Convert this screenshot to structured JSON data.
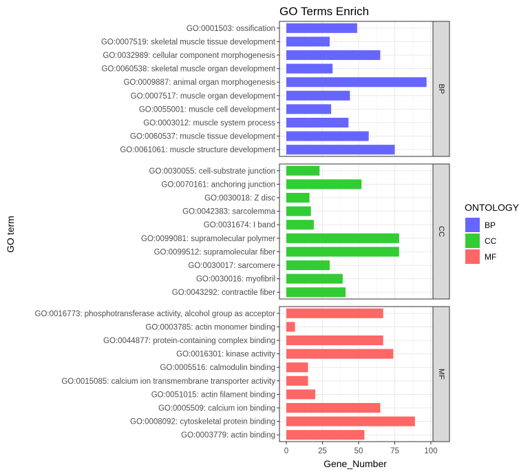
{
  "chart_data": {
    "type": "bar",
    "orientation": "horizontal",
    "title": "GO Terms Enrich",
    "xlabel": "Gene_Number",
    "ylabel": "GO term",
    "xlim": [
      0,
      100
    ],
    "xticks": [
      0,
      25,
      50,
      75,
      100
    ],
    "legend": {
      "title": "ONTOLOGY",
      "placement": "right",
      "items": [
        {
          "name": "BP",
          "color": "#6666FF"
        },
        {
          "name": "CC",
          "color": "#33CC33"
        },
        {
          "name": "MF",
          "color": "#FF6666"
        }
      ]
    },
    "facets": [
      {
        "name": "BP",
        "color": "#6666FF",
        "categories": [
          "GO:0001503: ossification",
          "GO:0007519: skeletal muscle tissue development",
          "GO:0032989: cellular component morphogenesis",
          "GO:0060538: skeletal muscle organ development",
          "GO:0009887: animal organ morphogenesis",
          "GO:0007517: muscle organ development",
          "GO:0055001: muscle cell development",
          "GO:0003012: muscle system process",
          "GO:0060537: muscle tissue development",
          "GO:0061061: muscle structure development"
        ],
        "values": [
          49,
          30,
          65,
          32,
          97,
          44,
          31,
          43,
          57,
          75
        ]
      },
      {
        "name": "CC",
        "color": "#33CC33",
        "categories": [
          "GO:0030055: cell-substrate junction",
          "GO:0070161: anchoring junction",
          "GO:0030018: Z disc",
          "GO:0042383: sarcolemma",
          "GO:0031674: I band",
          "GO:0099081: supramolecular polymer",
          "GO:0099512: supramolecular fiber",
          "GO:0030017: sarcomere",
          "GO:0030016: myofibril",
          "GO:0043292: contractile fiber"
        ],
        "values": [
          23,
          52,
          16,
          17,
          19,
          78,
          78,
          30,
          39,
          41
        ]
      },
      {
        "name": "MF",
        "color": "#FF6666",
        "categories": [
          "GO:0016773: phosphotransferase activity, alcohol group as acceptor",
          "GO:0003785: actin monomer binding",
          "GO:0044877: protein-containing complex binding",
          "GO:0016301: kinase activity",
          "GO:0005516: calmodulin binding",
          "GO:0015085: calcium ion transmembrane transporter activity",
          "GO:0051015: actin filament binding",
          "GO:0005509: calcium ion binding",
          "GO:0008092: cytoskeletal protein binding",
          "GO:0003779: actin binding"
        ],
        "values": [
          67,
          6,
          67,
          74,
          15,
          15,
          20,
          65,
          89,
          54
        ]
      }
    ]
  }
}
